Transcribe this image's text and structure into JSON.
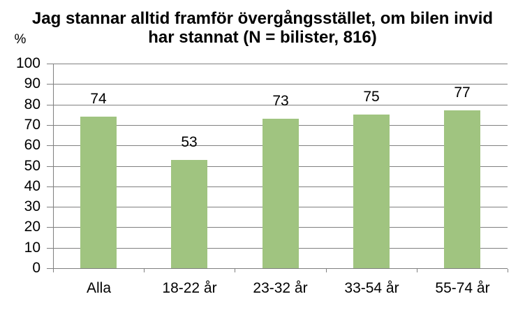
{
  "title": {
    "line1": "Jag stannar alltid framför övergångsstället, om bilen invid",
    "line2": "har stannat (N = bilister, 816)"
  },
  "y_axis_unit": "%",
  "chart_data": {
    "type": "bar",
    "title": "Jag stannar alltid framför övergångsstället, om bilen invid har stannat (N = bilister, 816)",
    "categories": [
      "Alla",
      "18-22 år",
      "23-32 år",
      "33-54 år",
      "55-74 år"
    ],
    "values": [
      74,
      53,
      73,
      75,
      77
    ],
    "data_labels": [
      74,
      53,
      73,
      75,
      77
    ],
    "xlabel": "",
    "ylabel": "%",
    "ylim": [
      0,
      100
    ],
    "yticks": [
      0,
      10,
      20,
      30,
      40,
      50,
      60,
      70,
      80,
      90,
      100
    ],
    "grid": true,
    "legend": false,
    "colors": {
      "bar": "#A0C480",
      "gridline": "#808080",
      "axis": "#808080",
      "text": "#000000",
      "background": "#FFFFFF"
    }
  }
}
